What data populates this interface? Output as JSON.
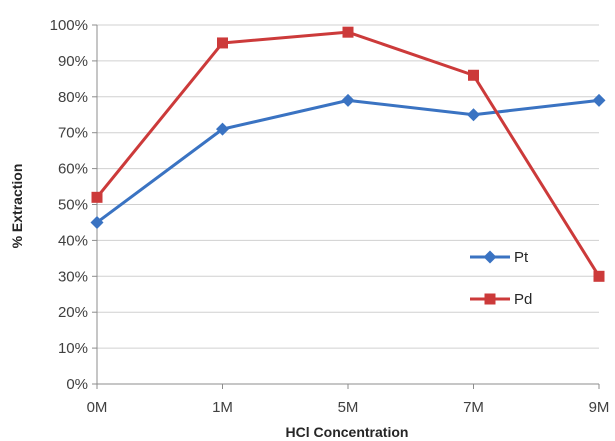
{
  "chart_data": {
    "type": "line",
    "categories": [
      "0M",
      "1M",
      "5M",
      "7M",
      "9M"
    ],
    "series": [
      {
        "name": "Pt",
        "values": [
          45,
          71,
          79,
          75,
          79
        ],
        "color": "#3a73c2",
        "marker": "diamond"
      },
      {
        "name": "Pd",
        "values": [
          52,
          95,
          98,
          86,
          30
        ],
        "color": "#cc3a3a",
        "marker": "square"
      }
    ],
    "yticks": [
      "0%",
      "10%",
      "20%",
      "30%",
      "40%",
      "50%",
      "60%",
      "70%",
      "80%",
      "90%",
      "100%"
    ],
    "xlabel": "HCl Concentration",
    "ylabel": "% Extraction",
    "ylim": [
      0,
      100
    ],
    "grid": true,
    "legend": "right"
  }
}
